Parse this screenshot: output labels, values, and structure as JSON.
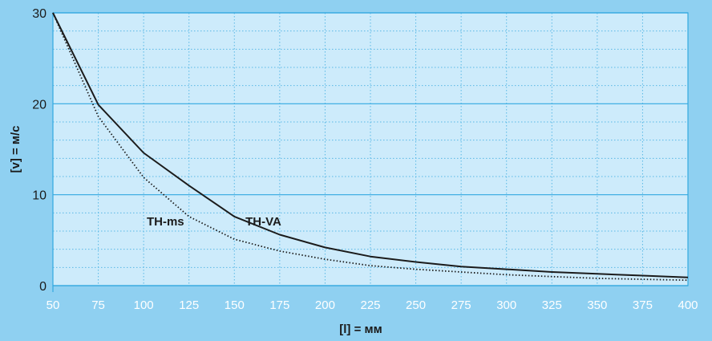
{
  "chart_data": {
    "type": "line",
    "xlabel": "[l] = мм",
    "ylabel": "[v] = м/с",
    "xlim": [
      50,
      400
    ],
    "ylim": [
      0,
      30
    ],
    "x_ticks": [
      "50",
      "75",
      "100",
      "125",
      "150",
      "175",
      "200",
      "225",
      "250",
      "275",
      "300",
      "325",
      "350",
      "375",
      "400"
    ],
    "y_ticks": [
      "0",
      "10",
      "20",
      "30"
    ],
    "grid": true,
    "colors": {
      "background": "#8fd0f1",
      "plot_area": "#cdebfb",
      "major_grid": "#33a9e0",
      "minor_grid": "#59b8e5",
      "line": "#1b1b1b",
      "x_tick_text": "#ffffff"
    },
    "series": [
      {
        "name": "TH-VA",
        "style": "solid",
        "x": [
          50,
          75,
          100,
          125,
          150,
          175,
          200,
          225,
          250,
          275,
          300,
          325,
          350,
          375,
          400
        ],
        "y": [
          30,
          19.9,
          14.6,
          11.0,
          7.6,
          5.6,
          4.2,
          3.2,
          2.6,
          2.1,
          1.8,
          1.5,
          1.3,
          1.1,
          0.9
        ]
      },
      {
        "name": "TH-ms",
        "style": "dotted",
        "x": [
          50,
          75,
          100,
          125,
          150,
          175,
          200,
          225,
          250,
          275,
          300,
          325,
          350,
          375,
          400
        ],
        "y": [
          30,
          18.6,
          11.9,
          7.6,
          5.1,
          3.8,
          2.9,
          2.2,
          1.8,
          1.5,
          1.2,
          1.0,
          0.8,
          0.7,
          0.6
        ]
      }
    ]
  }
}
